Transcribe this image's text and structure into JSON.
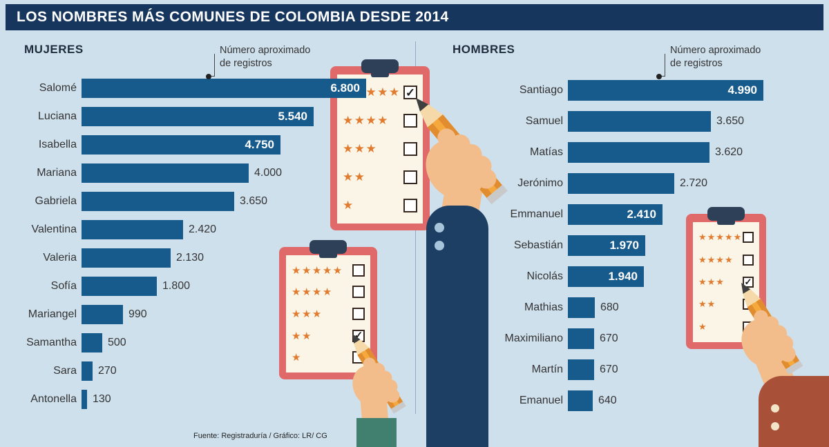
{
  "header": {
    "title": "LOS NOMBRES MÁS COMUNES DE COLOMBIA DESDE 2014"
  },
  "annotations": {
    "left_note": "Número aproximado\nde registros",
    "right_note": "Número aproximado\nde registros"
  },
  "footer": {
    "source": "Fuente: Registraduría / Gráfico: LR/ CG"
  },
  "colors": {
    "background": "#cfe0ed",
    "header_bar": "#16365e",
    "bar": "#175a8c",
    "value_inside_text": "#ffffff",
    "text_dark": "#333333",
    "star": "#e07b2f",
    "clipboard_frame": "#e06a6a",
    "clipboard_paper": "#faf5e6",
    "clipboard_clip": "#2e4057"
  },
  "chart_data": [
    {
      "type": "bar",
      "orientation": "horizontal",
      "group_label": "MUJERES",
      "value_note": "Número aproximado de registros",
      "categories": [
        "Salomé",
        "Luciana",
        "Isabella",
        "Mariana",
        "Gabriela",
        "Valentina",
        "Valeria",
        "Sofía",
        "Mariangel",
        "Samantha",
        "Sara",
        "Antonella"
      ],
      "values": [
        6800,
        5540,
        4750,
        4000,
        3650,
        2420,
        2130,
        1800,
        990,
        500,
        270,
        130
      ],
      "value_labels": [
        "6.800",
        "5.540",
        "4.750",
        "4.000",
        "3.650",
        "2.420",
        "2.130",
        "1.800",
        "990",
        "500",
        "270",
        "130"
      ],
      "label_inside_bar": [
        true,
        true,
        true,
        false,
        false,
        false,
        false,
        false,
        false,
        false,
        false,
        false
      ],
      "xlim": [
        0,
        6800
      ],
      "grid": false,
      "legend": false
    },
    {
      "type": "bar",
      "orientation": "horizontal",
      "group_label": "HOMBRES",
      "value_note": "Número aproximado de registros",
      "categories": [
        "Santiago",
        "Samuel",
        "Matías",
        "Jerónimo",
        "Emmanuel",
        "Sebastián",
        "Nicolás",
        "Mathias",
        "Maximiliano",
        "Martín",
        "Emanuel"
      ],
      "values": [
        4990,
        3650,
        3620,
        2720,
        2410,
        1970,
        1940,
        680,
        670,
        670,
        640
      ],
      "value_labels": [
        "4.990",
        "3.650",
        "3.620",
        "2.720",
        "2.410",
        "1.970",
        "1.940",
        "680",
        "670",
        "670",
        "640"
      ],
      "label_inside_bar": [
        true,
        false,
        false,
        false,
        true,
        true,
        true,
        false,
        false,
        false,
        false
      ],
      "xlim": [
        0,
        4990
      ],
      "grid": false,
      "legend": false
    }
  ],
  "decor": {
    "clipboards": [
      {
        "rows": [
          5,
          4,
          3,
          2,
          1
        ],
        "checked_row": 0
      },
      {
        "rows": [
          5,
          4,
          3,
          2,
          1
        ],
        "checked_row": 3
      },
      {
        "rows": [
          5,
          4,
          3,
          2,
          1
        ],
        "checked_row": 2
      }
    ]
  }
}
